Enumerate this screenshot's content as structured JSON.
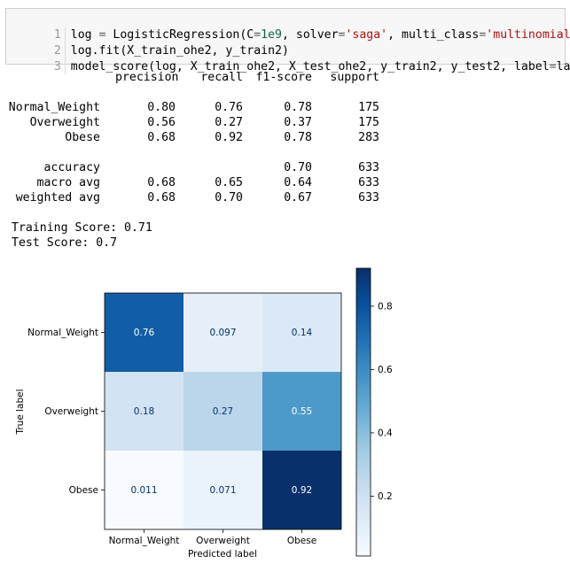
{
  "code_cell": {
    "lines": [
      {
        "n": "1",
        "parts": [
          {
            "t": "log ",
            "c": ""
          },
          {
            "t": "=",
            "c": "kw-eq"
          },
          {
            "t": " LogisticRegression(C",
            "c": ""
          },
          {
            "t": "=",
            "c": "kw-eq"
          },
          {
            "t": "1e9",
            "c": "num"
          },
          {
            "t": ", solver",
            "c": ""
          },
          {
            "t": "=",
            "c": "kw-eq"
          },
          {
            "t": "'saga'",
            "c": "str"
          },
          {
            "t": ", multi_class",
            "c": ""
          },
          {
            "t": "=",
            "c": "kw-eq"
          },
          {
            "t": "'multinomial'",
            "c": "str"
          },
          {
            "t": ")",
            "c": ""
          }
        ]
      },
      {
        "n": "2",
        "parts": [
          {
            "t": "log.fit(X_train_ohe2, y_train2)",
            "c": ""
          }
        ]
      },
      {
        "n": "3",
        "parts": [
          {
            "t": "model_score(log, X_train_ohe2, X_test_ohe2, y_train2, y_test2, label",
            "c": ""
          },
          {
            "t": "=",
            "c": "kw-eq"
          },
          {
            "t": "label)",
            "c": ""
          }
        ]
      }
    ]
  },
  "report": {
    "headers": [
      "precision",
      "recall",
      "f1-score",
      "support"
    ],
    "rows": [
      {
        "label": "Normal_Weight",
        "precision": "0.80",
        "recall": "0.76",
        "f1": "0.78",
        "support": "175"
      },
      {
        "label": "Overweight",
        "precision": "0.56",
        "recall": "0.27",
        "f1": "0.37",
        "support": "175"
      },
      {
        "label": "Obese",
        "precision": "0.68",
        "recall": "0.92",
        "f1": "0.78",
        "support": "283"
      },
      {
        "label": "accuracy",
        "precision": "",
        "recall": "",
        "f1": "0.70",
        "support": "633"
      },
      {
        "label": "macro avg",
        "precision": "0.68",
        "recall": "0.65",
        "f1": "0.64",
        "support": "633"
      },
      {
        "label": "weighted avg",
        "precision": "0.68",
        "recall": "0.70",
        "f1": "0.67",
        "support": "633"
      }
    ]
  },
  "scores": {
    "training": "Training Score: 0.71",
    "test": "Test Score: 0.7"
  },
  "chart_data": {
    "type": "heatmap",
    "title": "",
    "xlabel": "Predicted label",
    "ylabel": "True label",
    "x_categories": [
      "Normal_Weight",
      "Overweight",
      "Obese"
    ],
    "y_categories": [
      "Normal_Weight",
      "Overweight",
      "Obese"
    ],
    "values": [
      [
        0.76,
        0.097,
        0.14
      ],
      [
        0.18,
        0.27,
        0.55
      ],
      [
        0.011,
        0.071,
        0.92
      ]
    ],
    "cell_labels": [
      [
        "0.76",
        "0.097",
        "0.14"
      ],
      [
        "0.18",
        "0.27",
        "0.55"
      ],
      [
        "0.011",
        "0.071",
        "0.92"
      ]
    ],
    "colormap": "Blues",
    "colorbar": {
      "range": [
        0.011,
        0.92
      ],
      "ticks": [
        0.2,
        0.4,
        0.6,
        0.8
      ],
      "tick_labels": [
        "0.2",
        "0.4",
        "0.6",
        "0.8"
      ]
    }
  }
}
